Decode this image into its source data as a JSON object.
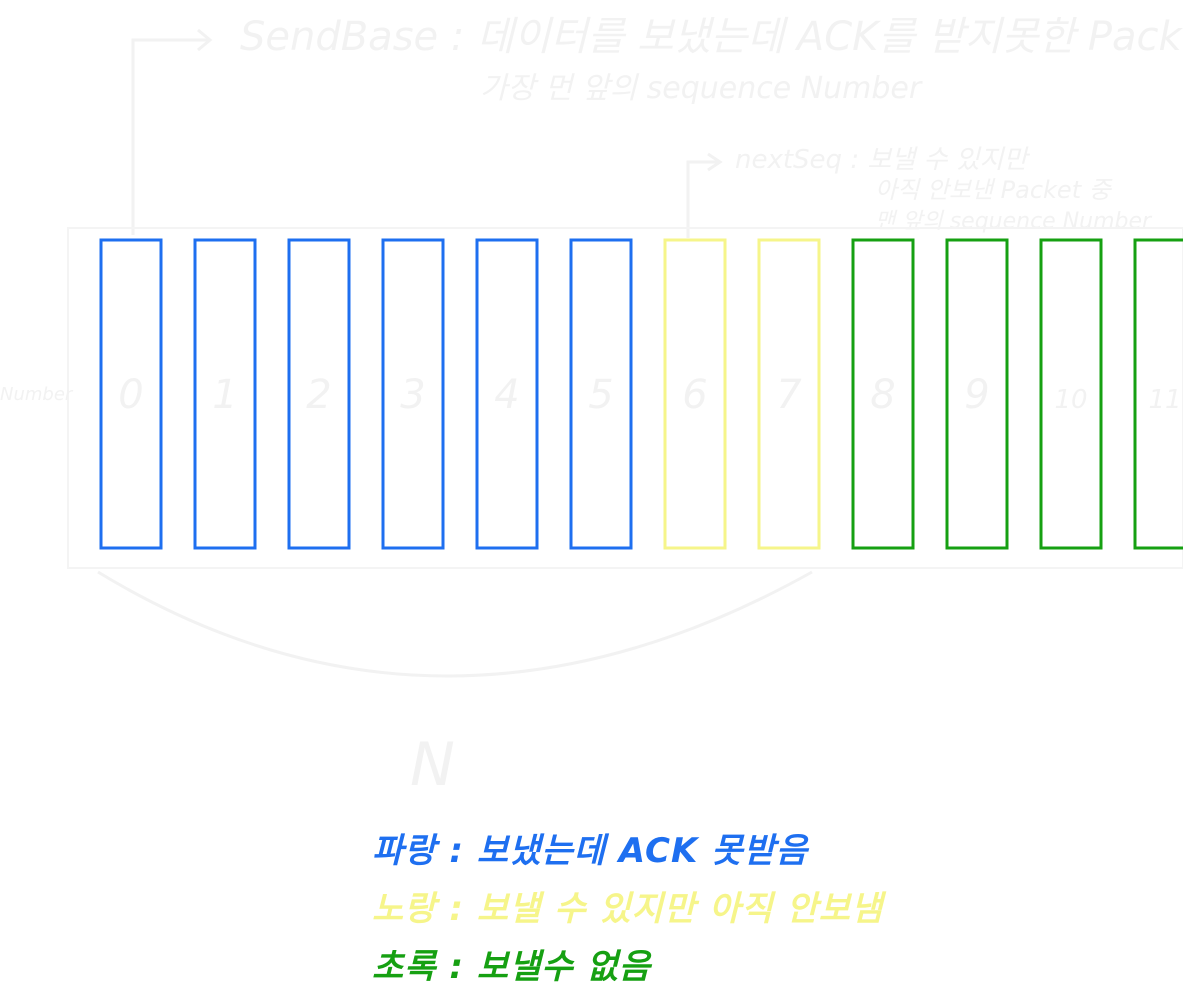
{
  "annotations": {
    "send_base_line1": "SendBase : 데이터를 보냈는데 ACK를 받지못한 Packet 중",
    "send_base_line2": "가장 먼 앞의 sequence Number",
    "next_seq_line1": "nextSeq : 보낼 수 있지만",
    "next_seq_line2": "아직 안보낸 Packet 중",
    "next_seq_line3": "맨 앞의 sequence Number",
    "window_size": "N",
    "row_label": "Number"
  },
  "packets": [
    {
      "number": "0",
      "state": "sent_not_acked"
    },
    {
      "number": "1",
      "state": "sent_not_acked"
    },
    {
      "number": "2",
      "state": "sent_not_acked"
    },
    {
      "number": "3",
      "state": "sent_not_acked"
    },
    {
      "number": "4",
      "state": "sent_not_acked"
    },
    {
      "number": "5",
      "state": "sent_not_acked"
    },
    {
      "number": "6",
      "state": "usable_not_sent"
    },
    {
      "number": "7",
      "state": "usable_not_sent"
    },
    {
      "number": "8",
      "state": "not_usable"
    },
    {
      "number": "9",
      "state": "not_usable"
    },
    {
      "number": "10",
      "state": "not_usable"
    },
    {
      "number": "11",
      "state": "not_usable"
    }
  ],
  "legend": [
    {
      "text": "파랑 : 보냈는데 ACK 못받음",
      "state": "sent_not_acked"
    },
    {
      "text": "노랑 : 보낼 수 있지만 아직 안보냄",
      "state": "usable_not_sent"
    },
    {
      "text": "초록 : 보낼수 없음",
      "state": "not_usable"
    }
  ],
  "colors": {
    "sent_not_acked": "#1e6ff0",
    "usable_not_sent": "#f6f58a",
    "not_usable": "#16a012",
    "faint": "#f2f2f2"
  }
}
